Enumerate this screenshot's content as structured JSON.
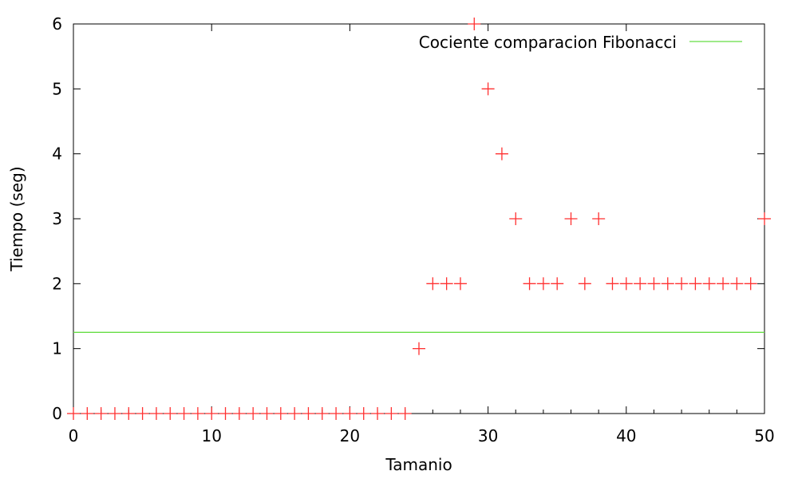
{
  "chart_data": {
    "type": "scatter",
    "title": "",
    "xlabel": "Tamanio",
    "ylabel": "Tiempo (seg)",
    "xlim": [
      0,
      50
    ],
    "ylim": [
      0,
      6
    ],
    "x_ticks": [
      "0",
      "10",
      "20",
      "30",
      "40",
      "50"
    ],
    "x_tick_values": [
      0,
      10,
      20,
      30,
      40,
      50
    ],
    "y_ticks": [
      "0",
      "1",
      "2",
      "3",
      "4",
      "5",
      "6"
    ],
    "y_tick_values": [
      0,
      1,
      2,
      3,
      4,
      5,
      6
    ],
    "grid": false,
    "legend_position": "top-right",
    "series": [
      {
        "name": "",
        "kind": "points",
        "marker": "plus",
        "color": "#ff3030",
        "x": [
          0,
          1,
          2,
          3,
          4,
          5,
          6,
          7,
          8,
          9,
          10,
          11,
          12,
          13,
          14,
          15,
          16,
          17,
          18,
          19,
          20,
          21,
          22,
          23,
          24,
          25,
          26,
          27,
          28,
          29,
          30,
          31,
          32,
          33,
          34,
          35,
          36,
          37,
          38,
          39,
          40,
          41,
          42,
          43,
          44,
          45,
          46,
          47,
          48,
          49,
          50
        ],
        "y": [
          0,
          0,
          0,
          0,
          0,
          0,
          0,
          0,
          0,
          0,
          0,
          0,
          0,
          0,
          0,
          0,
          0,
          0,
          0,
          0,
          0,
          0,
          0,
          0,
          0,
          1,
          2,
          2,
          2,
          6,
          5,
          4,
          3,
          2,
          2,
          2,
          3,
          2,
          3,
          2,
          2,
          2,
          2,
          2,
          2,
          2,
          2,
          2,
          2,
          2,
          3
        ]
      },
      {
        "name": "Cociente comparacion Fibonacci",
        "kind": "line",
        "color": "#66dd44",
        "x": [
          0,
          50
        ],
        "y": [
          1.25,
          1.25
        ]
      }
    ]
  }
}
